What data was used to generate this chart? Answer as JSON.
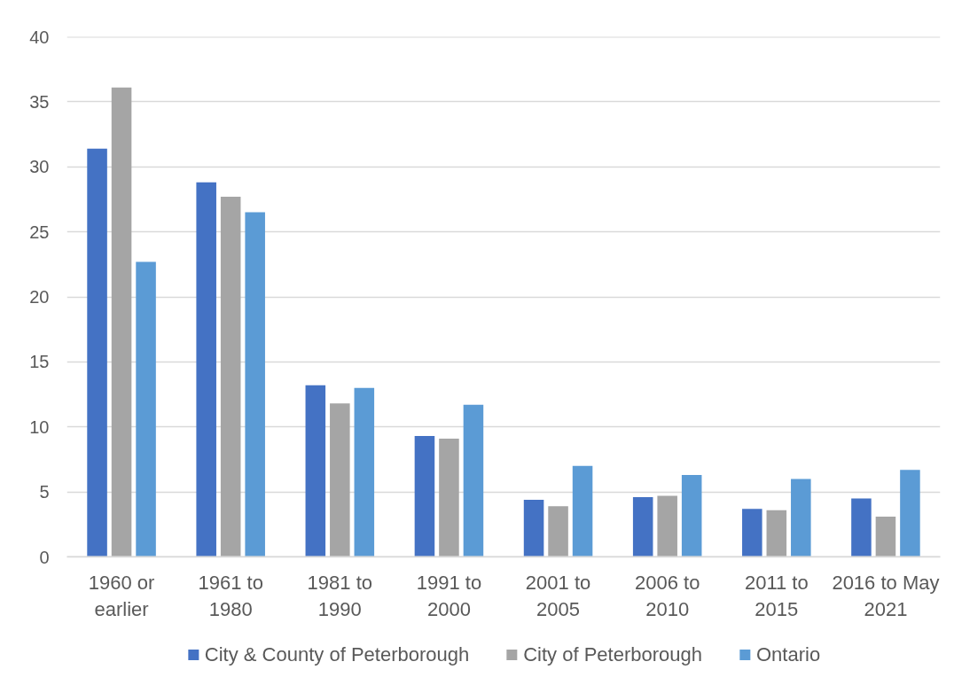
{
  "chart_data": {
    "type": "bar",
    "categories": [
      "1960 or earlier",
      "1961 to 1980",
      "1981 to 1990",
      "1991 to 2000",
      "2001 to 2005",
      "2006 to 2010",
      "2011 to 2015",
      "2016 to May 2021"
    ],
    "series": [
      {
        "name": "City & County of Peterborough",
        "color": "#4472c4",
        "values": [
          31.4,
          28.8,
          13.2,
          9.3,
          4.4,
          4.6,
          3.7,
          4.5
        ]
      },
      {
        "name": "City of Peterborough",
        "color": "#a5a5a5",
        "values": [
          36.1,
          27.7,
          11.8,
          9.1,
          3.9,
          4.7,
          3.6,
          3.1
        ]
      },
      {
        "name": "Ontario",
        "color": "#5b9bd5",
        "values": [
          22.7,
          26.5,
          13.0,
          11.7,
          7.0,
          6.3,
          6.0,
          6.7
        ]
      }
    ],
    "ylim": [
      0,
      40
    ],
    "yticks": [
      0,
      5,
      10,
      15,
      20,
      25,
      30,
      35,
      40
    ],
    "grid": "y",
    "legend": "bottom"
  }
}
